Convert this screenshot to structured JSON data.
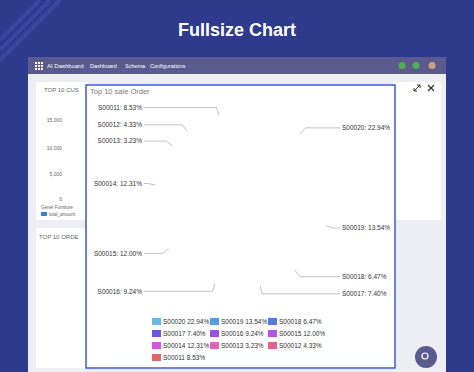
{
  "page": {
    "title": "Fullsize Chart",
    "nav": [
      "AI Dashboard",
      "Dashboard",
      "Schema",
      "Configurations"
    ],
    "left_panel_title": "TOP 10 CUS",
    "left_ticks": [
      "15,000",
      "10,000",
      "5,000",
      "0"
    ],
    "left_category": "Gener Furniture",
    "left_legend": "total_amount",
    "lower_panel_title": "TOP 10 ORDE"
  },
  "chart_data": {
    "type": "pie",
    "title": "Top 10 sale Order",
    "categories": [
      "S00020",
      "S00019",
      "S00018",
      "S00017",
      "S00016",
      "S00015",
      "S00014",
      "S00013",
      "S00012",
      "S00011"
    ],
    "values": [
      22.94,
      13.54,
      6.47,
      7.4,
      9.24,
      12.0,
      12.31,
      3.23,
      4.33,
      8.53
    ],
    "value_labels": [
      "S00020: 22.94%",
      "S00019: 13.54%",
      "S00018: 6.47%",
      "S00017: 7.40%",
      "S00016: 9.24%",
      "S00015: 12.00%",
      "S00014: 12.31%",
      "S00013: 3.23%",
      "S00012: 4.33%",
      "S00011: 8.53%"
    ],
    "legend_labels": [
      "S00020 22.94%",
      "S00019 13.54%",
      "S00018 6.47%",
      "S00017 7.40%",
      "S00016 9.24%",
      "S00015 12.00%",
      "S00014 12.31%",
      "S00013 3.23%",
      "S00012 4.33%",
      "S00011 8.53%"
    ],
    "colors": [
      "#6ab8e3",
      "#5a9ae0",
      "#5a78e0",
      "#6a5ae0",
      "#9355e0",
      "#b056e0",
      "#d25ad8",
      "#e063b5",
      "#e0638f",
      "#e06a63"
    ],
    "data_labels": true,
    "legend": "bottom"
  }
}
